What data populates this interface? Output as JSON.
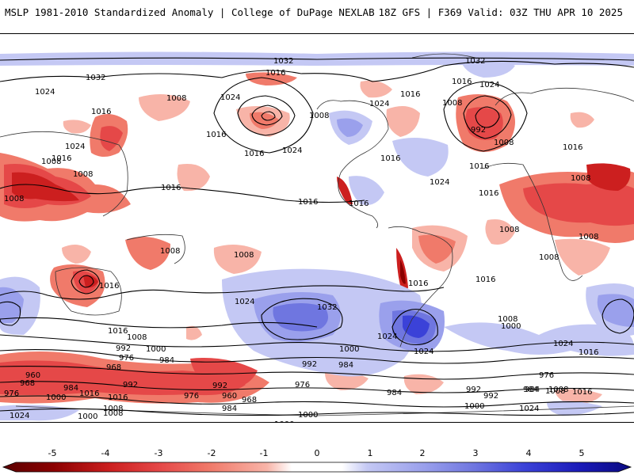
{
  "header": {
    "title_left": "MSLP 1981-2010 Standardized Anomaly | College of DuPage NEXLAB",
    "title_right": "18Z GFS | F369 Valid: 03Z THU APR 10 2025"
  },
  "colors": {
    "neg5": "#8b0000",
    "neg4": "#cc1f1f",
    "neg3": "#e54848",
    "neg2": "#f07a6a",
    "neg1": "#f8b4a8",
    "pos1": "#c4c8f4",
    "pos2": "#9aa0ec",
    "pos3": "#6f76e0",
    "pos4": "#3b42d8",
    "pos5": "#1a1ab8"
  },
  "colorbar": {
    "ticks": [
      "-5",
      "-4",
      "-3",
      "-2",
      "-1",
      "0",
      "1",
      "2",
      "3",
      "4",
      "5"
    ]
  },
  "contour_labels": [
    "1032",
    "1032",
    "1032",
    "1016",
    "1016",
    "1024",
    "1024",
    "1016",
    "1008",
    "1024",
    "1016",
    "1024",
    "1016",
    "1024",
    "1008",
    "1016",
    "1016",
    "1016",
    "1008",
    "992",
    "1008",
    "1016",
    "1024",
    "1016",
    "1024",
    "1008",
    "1016",
    "1008",
    "1016",
    "1008",
    "1008",
    "1008",
    "1016",
    "1016",
    "1008",
    "1008",
    "1016",
    "1008",
    "1016",
    "1024",
    "1032",
    "1016",
    "1008",
    "1008",
    "1000",
    "1016",
    "1024",
    "1024",
    "1024",
    "1016",
    "1008",
    "992",
    "1000",
    "984",
    "976",
    "1000",
    "984",
    "992",
    "960",
    "968",
    "968",
    "976",
    "984",
    "992",
    "976",
    "960",
    "968",
    "992",
    "984",
    "1000",
    "1008",
    "1016",
    "1000",
    "976",
    "984",
    "1024",
    "1000",
    "1008",
    "1000",
    "992",
    "984",
    "992",
    "976",
    "984",
    "1008",
    "1016",
    "1000",
    "1024",
    "1016",
    "1008"
  ]
}
